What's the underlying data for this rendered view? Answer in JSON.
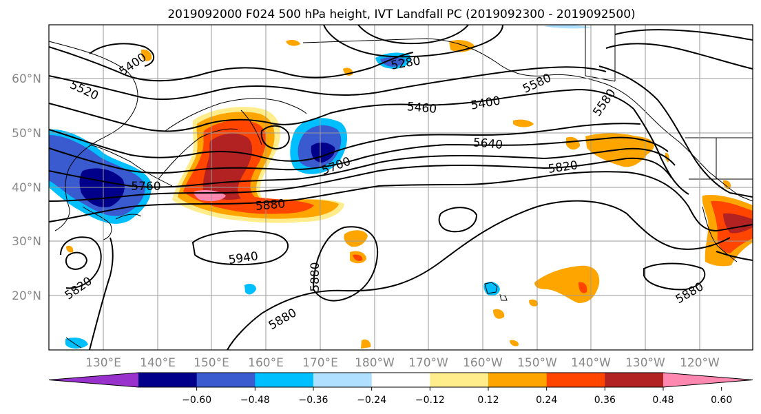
{
  "title": "2019092000 F024 500 hPa height, IVT Landfall PC (2019092300 - 2019092500)",
  "lat_labels": [
    "60°N",
    "50°N",
    "40°N",
    "30°N",
    "20°N"
  ],
  "lon_labels": [
    "130°E",
    "140°E",
    "150°E",
    "160°E",
    "170°E",
    "180°W",
    "170°W",
    "160°W",
    "150°W",
    "140°W",
    "130°W",
    "120°W"
  ],
  "contour_labels": [
    "5400",
    "5520",
    "5280",
    "5460",
    "5400",
    "5580",
    "5580",
    "5640",
    "5700",
    "5760",
    "5820",
    "5880",
    "5940",
    "5880",
    "5820",
    "5880",
    "5880"
  ],
  "colorbar": {
    "ticks": [
      "−0.60",
      "−0.48",
      "−0.36",
      "−0.24",
      "−0.12",
      "0.12",
      "0.24",
      "0.36",
      "0.48",
      "0.60"
    ],
    "colors": [
      "#9932cc",
      "#00008b",
      "#3a5bd0",
      "#00bfff",
      "#b0e0ff",
      "#ffffff",
      "#ffec8b",
      "#ffa500",
      "#ff4500",
      "#b22222",
      "#ff88b0"
    ]
  }
}
